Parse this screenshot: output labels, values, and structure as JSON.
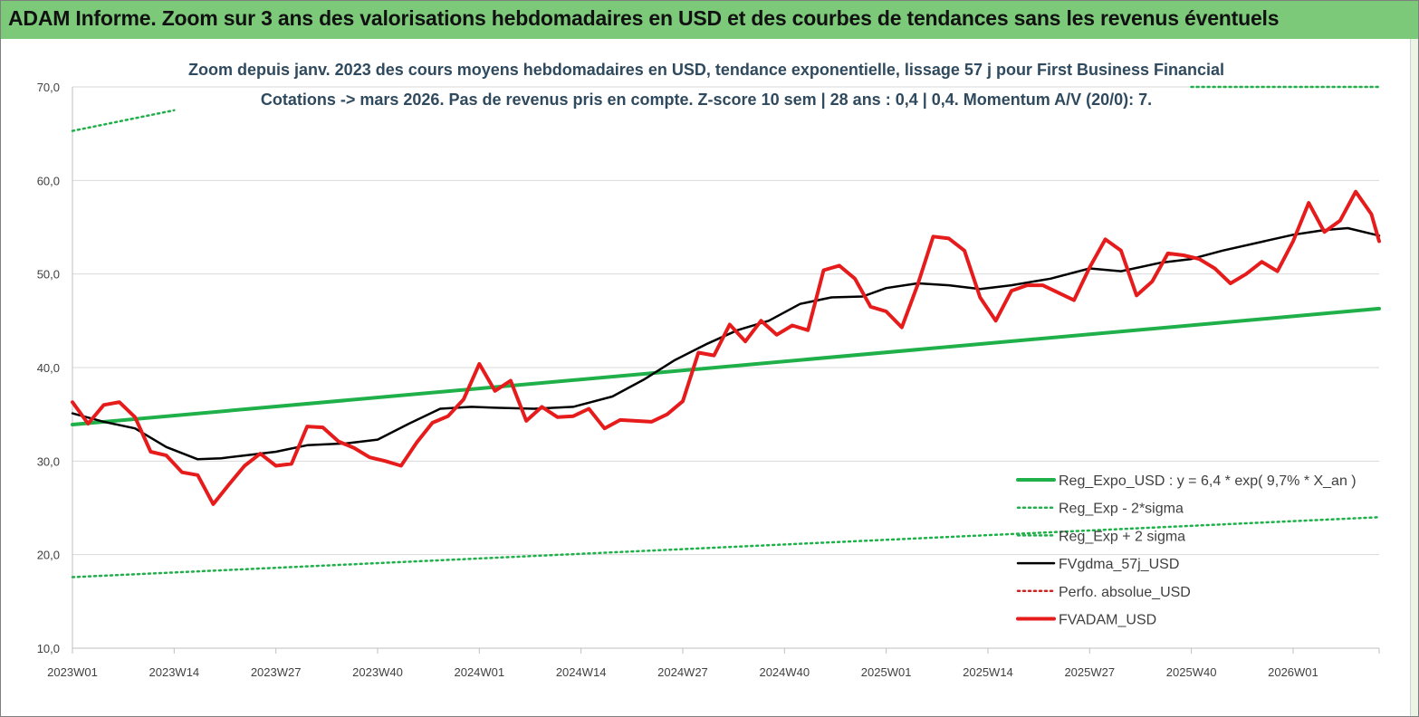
{
  "banner": {
    "title": "ADAM Informe. Zoom sur 3 ans des valorisations hebdomadaires en USD et des courbes de tendances sans les revenus éventuels"
  },
  "chart_data": {
    "type": "line",
    "title_line1": "Zoom depuis janv. 2023 des cours moyens hebdomadaires en USD, tendance exponentielle, lissage 57 j pour First Business Financial",
    "title_line2": "Cotations -> mars 2026. Pas de revenus pris en compte. Z-score 10 sem | 28 ans : 0,4 | 0,4. Momentum A/V (20/0): 7.",
    "ylim": [
      10,
      70
    ],
    "yticks": [
      10,
      20,
      30,
      40,
      50,
      60,
      70
    ],
    "ytick_labels": [
      "10,0",
      "20,0",
      "30,0",
      "40,0",
      "50,0",
      "60,0",
      "70,0"
    ],
    "x_start": "2023W01",
    "x_end": "2026W12",
    "xtick_labels": [
      "2023W01",
      "2023W14",
      "2023W27",
      "2023W40",
      "2024W01",
      "2024W14",
      "2024W27",
      "2024W40",
      "2025W01",
      "2025W14",
      "2025W27",
      "2025W40",
      "2026W01"
    ],
    "grid": true,
    "legend_position": "bottom-right",
    "colors": {
      "trend": "#1fb04a",
      "bands": "#1fb04a",
      "smooth": "#000000",
      "perfo": "#d62020",
      "price": "#e61c1c"
    },
    "series": [
      {
        "name": "Reg_Expo_USD : y = 6,4 * exp( 9,7% * X_an )",
        "style": "solid-thick",
        "x": [
          "2023W01",
          "2026W12"
        ],
        "y": [
          33.9,
          46.3
        ]
      },
      {
        "name": "Reg_Exp - 2*sigma",
        "style": "dotted",
        "x": [
          "2023W01",
          "2026W12"
        ],
        "y": [
          17.6,
          24.0
        ]
      },
      {
        "name": "Reg_Exp + 2 sigma",
        "style": "dotted",
        "x": [
          "2023W01",
          "2023W14",
          "2026W12"
        ],
        "y": [
          65.3,
          67.5,
          70.0
        ],
        "note_visible_segments": [
          [
            "2023W01",
            "2023W14"
          ],
          [
            "2025W40",
            "2026W12"
          ]
        ]
      },
      {
        "name": "FVgdma_57j_USD",
        "style": "solid",
        "x": [
          "2023W01",
          "2023W05",
          "2023W09",
          "2023W13",
          "2023W17",
          "2023W20",
          "2023W24",
          "2023W27",
          "2023W31",
          "2023W36",
          "2023W40",
          "2023W44",
          "2023W48",
          "2023W52",
          "2024W03",
          "2024W08",
          "2024W13",
          "2024W18",
          "2024W22",
          "2024W26",
          "2024W30",
          "2024W34",
          "2024W38",
          "2024W42",
          "2024W46",
          "2024W50",
          "2025W01",
          "2025W05",
          "2025W09",
          "2025W13",
          "2025W17",
          "2025W22",
          "2025W27",
          "2025W31",
          "2025W36",
          "2025W40",
          "2025W44",
          "2026W01",
          "2026W05",
          "2026W08",
          "2026W12"
        ],
        "y": [
          35.1,
          34.2,
          33.5,
          31.5,
          30.2,
          30.3,
          30.7,
          31.0,
          31.7,
          31.9,
          32.3,
          34.0,
          35.6,
          35.8,
          35.7,
          35.6,
          35.8,
          36.9,
          38.7,
          40.8,
          42.5,
          44.0,
          45.0,
          46.8,
          47.5,
          47.6,
          48.5,
          49.0,
          48.8,
          48.4,
          48.8,
          49.5,
          50.6,
          50.3,
          51.2,
          51.6,
          52.5,
          54.2,
          54.7,
          54.9,
          54.1
        ]
      },
      {
        "name": "Perfo. absolue_USD",
        "style": "dotted",
        "x": [],
        "y": []
      },
      {
        "name": "FVADAM_USD",
        "style": "solid-thick",
        "x": [
          "2023W01",
          "2023W03",
          "2023W05",
          "2023W07",
          "2023W09",
          "2023W11",
          "2023W13",
          "2023W15",
          "2023W17",
          "2023W19",
          "2023W21",
          "2023W23",
          "2023W25",
          "2023W27",
          "2023W29",
          "2023W31",
          "2023W33",
          "2023W35",
          "2023W37",
          "2023W39",
          "2023W41",
          "2023W43",
          "2023W45",
          "2023W47",
          "2023W49",
          "2023W51",
          "2024W01",
          "2024W03",
          "2024W05",
          "2024W07",
          "2024W09",
          "2024W11",
          "2024W13",
          "2024W15",
          "2024W17",
          "2024W19",
          "2024W21",
          "2024W23",
          "2024W25",
          "2024W27",
          "2024W29",
          "2024W31",
          "2024W33",
          "2024W35",
          "2024W37",
          "2024W39",
          "2024W41",
          "2024W43",
          "2024W45",
          "2024W47",
          "2024W49",
          "2024W51",
          "2025W01",
          "2025W03",
          "2025W05",
          "2025W07",
          "2025W09",
          "2025W11",
          "2025W13",
          "2025W15",
          "2025W17",
          "2025W19",
          "2025W21",
          "2025W23",
          "2025W25",
          "2025W27",
          "2025W29",
          "2025W31",
          "2025W33",
          "2025W35",
          "2025W37",
          "2025W39",
          "2025W41",
          "2025W43",
          "2025W45",
          "2025W47",
          "2025W49",
          "2025W51",
          "2026W01",
          "2026W03",
          "2026W05",
          "2026W07",
          "2026W09",
          "2026W11",
          "2026W12"
        ],
        "y": [
          36.3,
          34.0,
          36.0,
          36.3,
          34.7,
          31.0,
          30.6,
          28.8,
          28.5,
          25.4,
          27.5,
          29.5,
          30.8,
          29.5,
          29.7,
          33.7,
          33.6,
          32.1,
          31.4,
          30.4,
          30.0,
          29.5,
          32.0,
          34.1,
          34.8,
          36.6,
          40.4,
          37.5,
          38.6,
          34.3,
          35.8,
          34.7,
          34.8,
          35.6,
          33.5,
          34.4,
          34.3,
          34.2,
          35.0,
          36.4,
          41.6,
          41.3,
          44.6,
          42.8,
          45.0,
          43.5,
          44.5,
          44.0,
          50.4,
          50.9,
          49.5,
          46.5,
          46.0,
          44.3,
          48.8,
          54.0,
          53.8,
          52.5,
          47.5,
          45.0,
          48.2,
          48.8,
          48.8,
          48.0,
          47.2,
          50.7,
          53.7,
          52.5,
          47.7,
          49.2,
          52.2,
          52.0,
          51.6,
          50.6,
          49.0,
          50.0,
          51.3,
          50.3,
          53.5,
          57.6,
          54.5,
          55.7,
          58.8,
          56.4,
          53.5
        ]
      }
    ]
  }
}
